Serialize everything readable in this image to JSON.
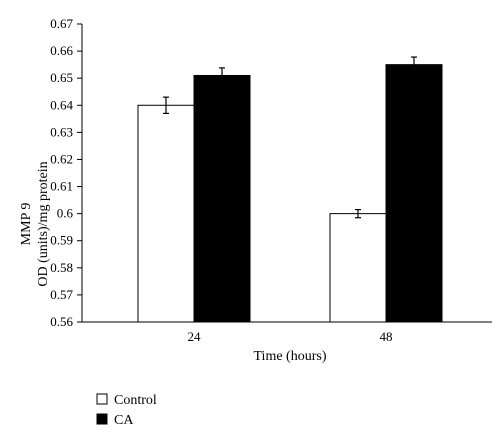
{
  "chart_data": {
    "type": "bar",
    "categories": [
      "24",
      "48"
    ],
    "series": [
      {
        "name": "Control",
        "values": [
          0.64,
          0.6
        ],
        "errors": [
          0.003,
          0.0015
        ],
        "color": "#ffffff"
      },
      {
        "name": "CA",
        "values": [
          0.651,
          0.655
        ],
        "errors": [
          0.0028,
          0.0028
        ],
        "color": "#000000"
      }
    ],
    "xlabel": "Time (hours)",
    "ylabel_line1": "MMP 9",
    "ylabel_line2": "OD (units)/mg protein",
    "ylim": [
      0.56,
      0.67
    ],
    "yticks": [
      "0.56",
      "0.57",
      "0.58",
      "0.59",
      "0.6",
      "0.61",
      "0.62",
      "0.63",
      "0.64",
      "0.65",
      "0.66",
      "0.67"
    ],
    "grid": false,
    "legend_position": "bottom-left"
  }
}
